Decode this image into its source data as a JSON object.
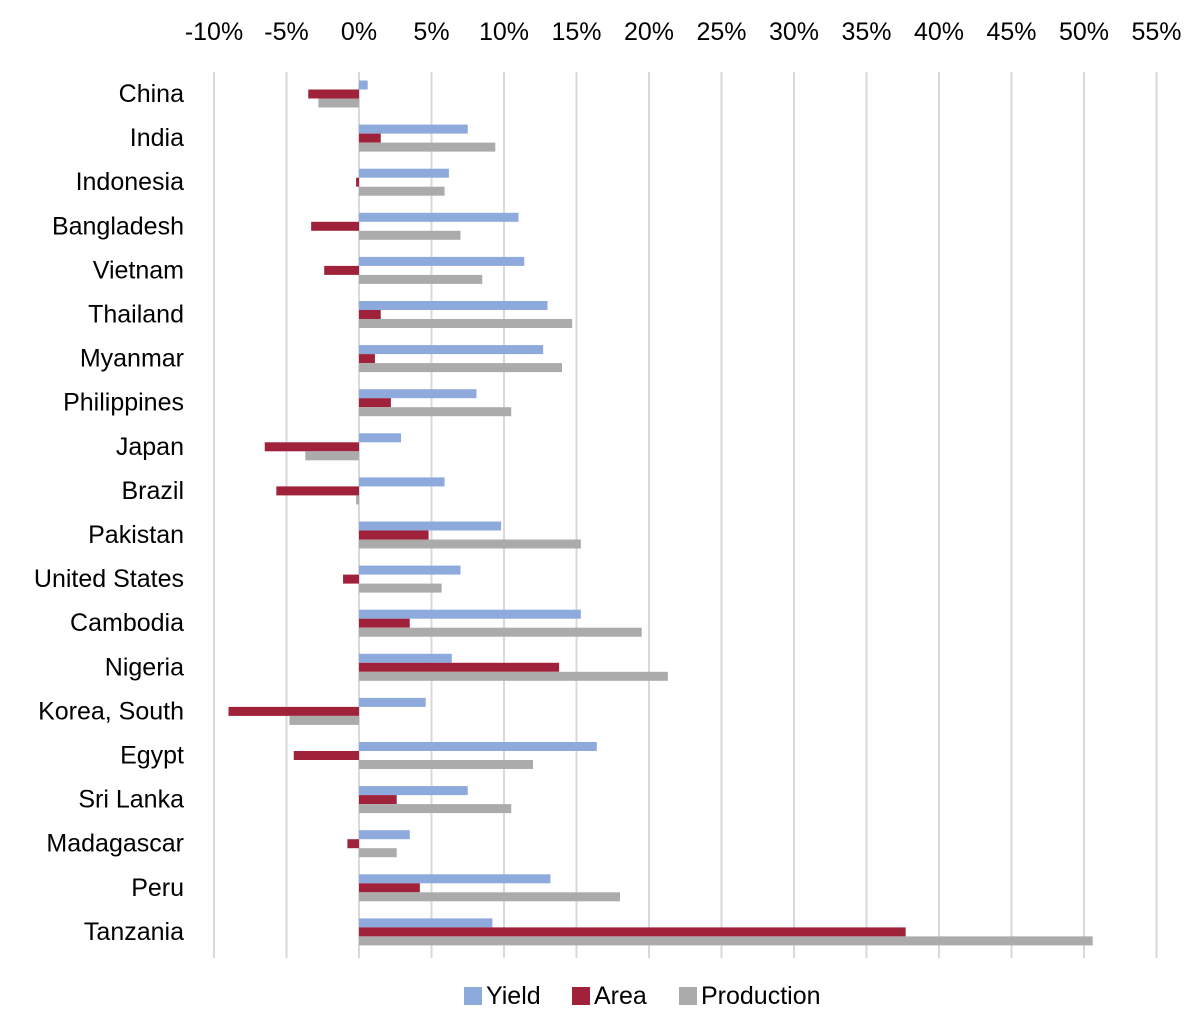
{
  "chart_data": {
    "type": "bar",
    "orientation": "horizontal",
    "title": "",
    "xlabel": "",
    "ylabel": "",
    "x_axis_position": "top",
    "xlim": [
      -10,
      55
    ],
    "x_ticks": [
      -10,
      -5,
      0,
      5,
      10,
      15,
      20,
      25,
      30,
      35,
      40,
      45,
      50,
      55
    ],
    "tick_suffix": "%",
    "grid": "vertical",
    "legend_position": "bottom",
    "categories": [
      "China",
      "India",
      "Indonesia",
      "Bangladesh",
      "Vietnam",
      "Thailand",
      "Myanmar",
      "Philippines",
      "Japan",
      "Brazil",
      "Pakistan",
      "United States",
      "Cambodia",
      "Nigeria",
      "Korea, South",
      "Egypt",
      "Sri Lanka",
      "Madagascar",
      "Peru",
      "Tanzania"
    ],
    "series": [
      {
        "name": "Yield",
        "color": "#8EA9DB",
        "values": [
          0.6,
          7.5,
          6.2,
          11.0,
          11.4,
          13.0,
          12.7,
          8.1,
          2.9,
          5.9,
          9.8,
          7.0,
          15.3,
          6.4,
          4.6,
          16.4,
          7.5,
          3.5,
          13.2,
          9.2
        ]
      },
      {
        "name": "Area",
        "color": "#A0223A",
        "values": [
          -3.5,
          1.5,
          -0.2,
          -3.3,
          -2.4,
          1.5,
          1.1,
          2.2,
          -6.5,
          -5.7,
          4.8,
          -1.1,
          3.5,
          13.8,
          -9.0,
          -4.5,
          2.6,
          -0.8,
          4.2,
          37.7
        ]
      },
      {
        "name": "Production",
        "color": "#ABABAB",
        "values": [
          -2.8,
          9.4,
          5.9,
          7.0,
          8.5,
          14.7,
          14.0,
          10.5,
          -3.7,
          -0.2,
          15.3,
          5.7,
          19.5,
          21.3,
          -4.8,
          12.0,
          10.5,
          2.6,
          18.0,
          50.6
        ]
      }
    ]
  }
}
